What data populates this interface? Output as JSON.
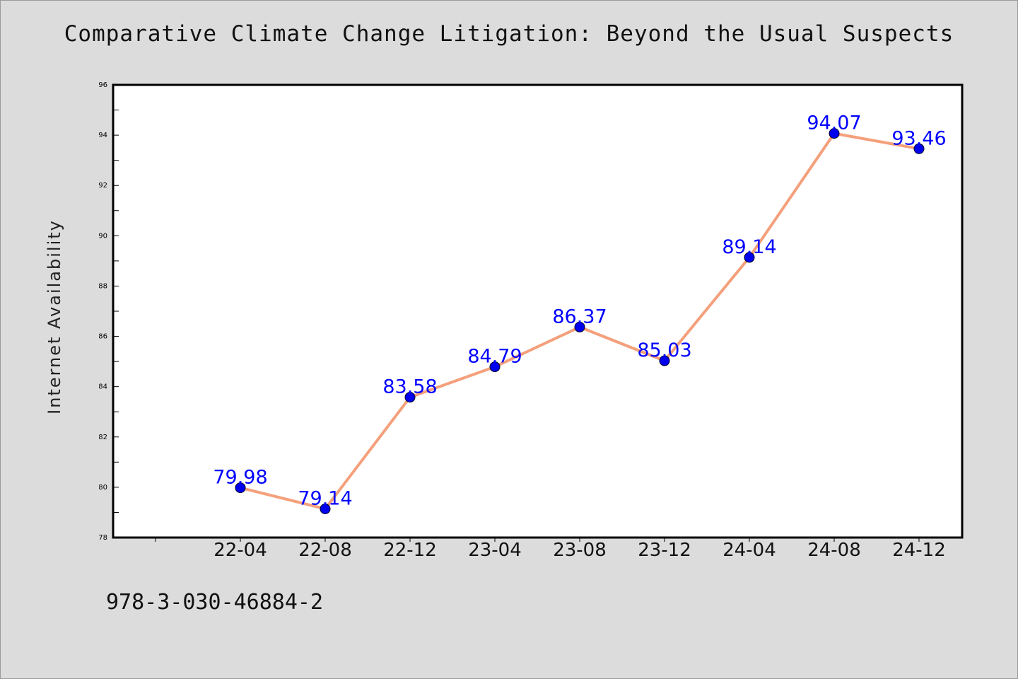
{
  "chart_data": {
    "type": "line",
    "title": "Comparative Climate Change Litigation: Beyond the Usual Suspects",
    "ylabel": "Internet Availability",
    "xlabel": "",
    "categories": [
      "22-04",
      "22-08",
      "22-12",
      "23-04",
      "23-08",
      "23-12",
      "24-04",
      "24-08",
      "24-12"
    ],
    "series": [
      {
        "values": [
          79.98,
          79.14,
          83.58,
          84.79,
          86.37,
          85.03,
          89.14,
          94.07,
          93.46
        ],
        "line_color": "#f4a07c",
        "marker_color": "#0000ee",
        "label_color": "#0000ff"
      }
    ],
    "data_labels": [
      "79.98",
      "79.14",
      "83.58",
      "84.79",
      "86.37",
      "85.03",
      "89.14",
      "94.07",
      "93.46"
    ],
    "ylim": [
      78,
      96
    ],
    "yticks": [
      "78",
      "80",
      "82",
      "84",
      "86",
      "88",
      "90",
      "92",
      "94",
      "96"
    ],
    "grid": false,
    "legend": "none"
  },
  "footer": {
    "code": "978-3-030-46884-2"
  },
  "colors": {
    "background": "#dcdcdc",
    "plot_background": "#ffffff"
  }
}
